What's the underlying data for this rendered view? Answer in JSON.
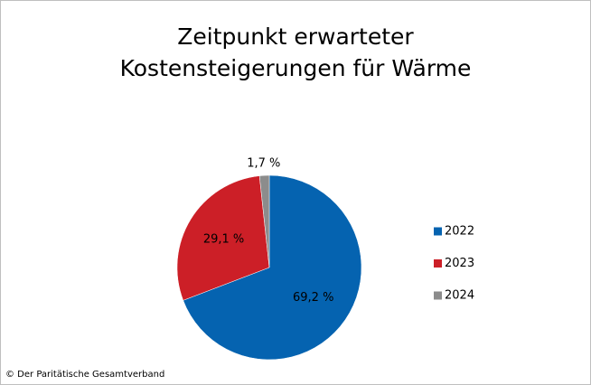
{
  "chart_data": {
    "type": "pie",
    "title": [
      "Zeitpunkt erwarteter",
      "Kostensteigerungen für Wärme"
    ],
    "categories": [
      "2022",
      "2023",
      "2024"
    ],
    "values": [
      69.2,
      29.1,
      1.7
    ],
    "value_labels": [
      "69,2 %",
      "29,1 %",
      "1,7 %"
    ],
    "colors": [
      "#0563b0",
      "#cc1f27",
      "#8c8c8c"
    ],
    "legend": "right",
    "source": "© Der Paritätische Gesamtverband"
  }
}
